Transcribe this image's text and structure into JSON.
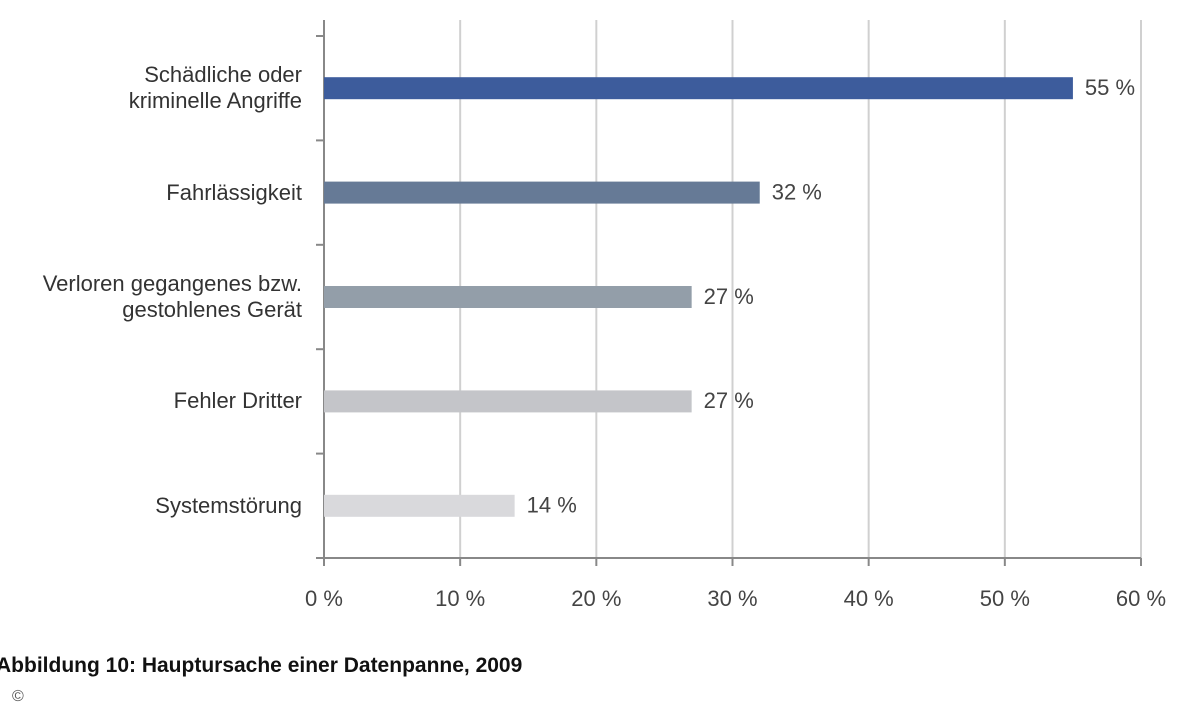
{
  "chart_data": {
    "type": "hbar",
    "caption": "Abbildung 10: Hauptursache einer Datenpanne, 2009",
    "copyright": "©",
    "categories": [
      "Schädliche oder\nkriminelle Angriffe",
      "Fahrlässigkeit",
      "Verloren gegangenes bzw.\ngestohlenes Gerät",
      "Fehler Dritter",
      "Systemstörung"
    ],
    "values": [
      55,
      32,
      27,
      27,
      14
    ],
    "value_labels": [
      "55 %",
      "32 %",
      "27 %",
      "27 %",
      "14 %"
    ],
    "colors": [
      "#3d5c9c",
      "#667a96",
      "#939ea9",
      "#c4c5c9",
      "#d9d9dc"
    ],
    "xlim": [
      0,
      60
    ],
    "xticks": [
      {
        "value": 0,
        "label": "0 %"
      },
      {
        "value": 10,
        "label": "10 %"
      },
      {
        "value": 20,
        "label": "20 %"
      },
      {
        "value": 30,
        "label": "30 %"
      },
      {
        "value": 40,
        "label": "40 %"
      },
      {
        "value": 50,
        "label": "50 %"
      },
      {
        "value": 60,
        "label": "60 %"
      }
    ],
    "grid": true
  }
}
